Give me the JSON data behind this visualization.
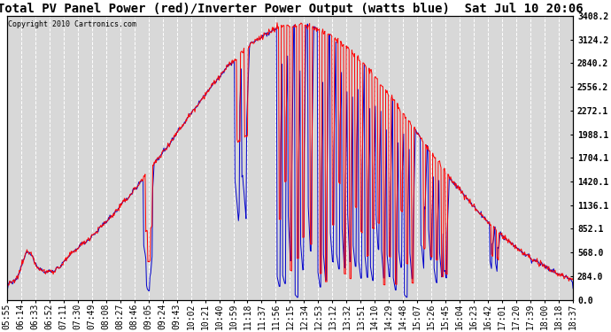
{
  "title": "Total PV Panel Power (red)/Inverter Power Output (watts blue)  Sat Jul 10 20:06",
  "copyright": "Copyright 2010 Cartronics.com",
  "ylabel_right_ticks": [
    0.0,
    284.0,
    568.0,
    852.1,
    1136.1,
    1420.1,
    1704.1,
    1988.1,
    2272.1,
    2556.2,
    2840.2,
    3124.2,
    3408.2
  ],
  "x_labels": [
    "05:55",
    "06:14",
    "06:33",
    "06:52",
    "07:11",
    "07:30",
    "07:49",
    "08:08",
    "08:27",
    "08:46",
    "09:05",
    "09:24",
    "09:43",
    "10:02",
    "10:21",
    "10:40",
    "10:59",
    "11:18",
    "11:37",
    "11:56",
    "12:15",
    "12:34",
    "12:53",
    "13:12",
    "13:32",
    "13:51",
    "14:10",
    "14:29",
    "14:48",
    "15:07",
    "15:26",
    "15:45",
    "16:04",
    "16:23",
    "16:42",
    "17:01",
    "17:20",
    "17:39",
    "18:00",
    "18:18",
    "18:37"
  ],
  "background_color": "#ffffff",
  "plot_background": "#d8d8d8",
  "grid_color": "#ffffff",
  "red_color": "#ff0000",
  "blue_color": "#0000cc",
  "title_fontsize": 10,
  "tick_fontsize": 7,
  "ymax": 3408.2,
  "ymin": 0.0,
  "figwidth": 6.9,
  "figheight": 3.75,
  "dpi": 100
}
